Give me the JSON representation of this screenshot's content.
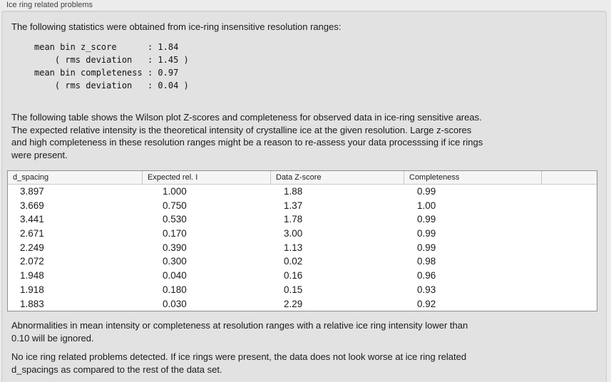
{
  "window": {
    "title": "Ice ring related problems"
  },
  "colors": {
    "page_bg": "#ececec",
    "panel_bg": "#e2e2e2",
    "table_bg": "#ffffff",
    "table_border": "#8e8e8e",
    "header_bg": "#f5f5f5"
  },
  "panel": {
    "intro": "The following statistics were obtained from ice-ring insensitive resolution ranges:",
    "stats_block": {
      "lines": [
        "mean bin z_score      : 1.84",
        "    ( rms deviation   : 1.45 )",
        "mean bin completeness : 0.97",
        "    ( rms deviation   : 0.04 )"
      ]
    },
    "description": {
      "lines": [
        "The following table shows the Wilson plot Z-scores and completeness for observed data in ice-ring sensitive areas.",
        "The expected relative intensity is the theoretical intensity of crystalline ice at the given resolution. Large z-scores",
        "and high completeness in these resolution ranges might be a reason to re-assess your data processsing if ice rings",
        "were present."
      ]
    },
    "table": {
      "headers": [
        "d_spacing",
        "Expected rel. I",
        "Data Z-score",
        "Completeness",
        ""
      ],
      "rows": [
        {
          "d_spacing": "3.897",
          "expected_rel_i": "1.000",
          "data_z_score": "1.88",
          "completeness": "0.99"
        },
        {
          "d_spacing": "3.669",
          "expected_rel_i": "0.750",
          "data_z_score": "1.37",
          "completeness": "1.00"
        },
        {
          "d_spacing": "3.441",
          "expected_rel_i": "0.530",
          "data_z_score": "1.78",
          "completeness": "0.99"
        },
        {
          "d_spacing": "2.671",
          "expected_rel_i": "0.170",
          "data_z_score": "3.00",
          "completeness": "0.99"
        },
        {
          "d_spacing": "2.249",
          "expected_rel_i": "0.390",
          "data_z_score": "1.13",
          "completeness": "0.99"
        },
        {
          "d_spacing": "2.072",
          "expected_rel_i": "0.300",
          "data_z_score": "0.02",
          "completeness": "0.98"
        },
        {
          "d_spacing": "1.948",
          "expected_rel_i": "0.040",
          "data_z_score": "0.16",
          "completeness": "0.96"
        },
        {
          "d_spacing": "1.918",
          "expected_rel_i": "0.180",
          "data_z_score": "0.15",
          "completeness": "0.93"
        },
        {
          "d_spacing": "1.883",
          "expected_rel_i": "0.030",
          "data_z_score": "2.29",
          "completeness": "0.92"
        }
      ]
    },
    "note": {
      "lines": [
        "Abnormalities in mean intensity or completeness at resolution ranges with a relative ice ring intensity lower than",
        "0.10 will be ignored."
      ]
    },
    "conclusion": {
      "lines": [
        "No ice ring related problems detected. If ice rings were present, the data does not look worse at ice ring related",
        "d_spacings as compared to the rest of the data set."
      ]
    }
  }
}
